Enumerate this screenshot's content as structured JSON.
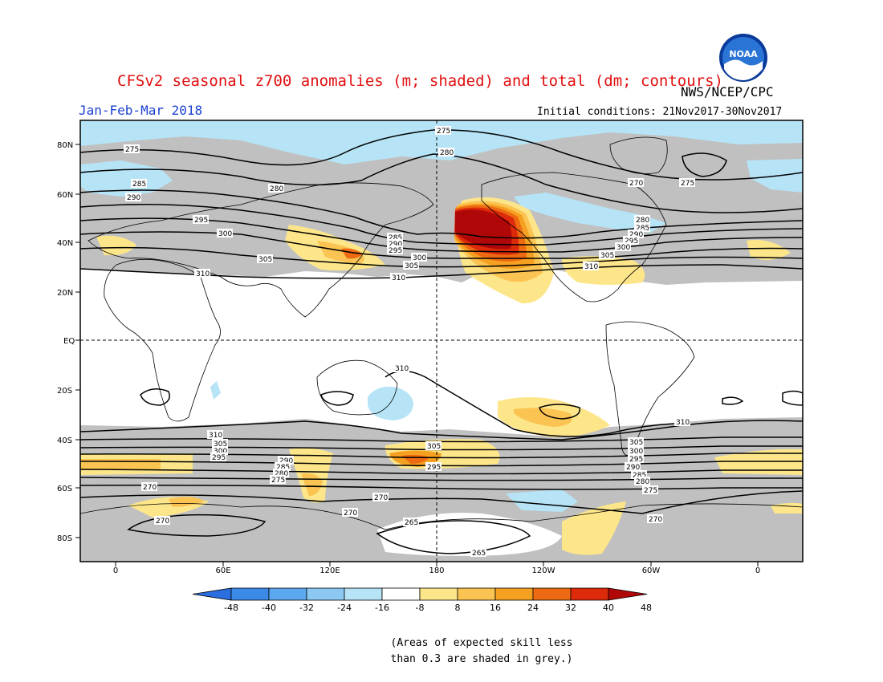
{
  "header": {
    "title": "CFSv2 seasonal z700 anomalies (m; shaded) and total (dm; contours)",
    "agency": "NWS/NCEP/CPC",
    "period": "Jan-Feb-Mar 2018",
    "initial_conditions": "Initial conditions: 21Nov2017-30Nov2017"
  },
  "logo": {
    "text": "NOAA",
    "icon": "noaa-logo"
  },
  "axes": {
    "lat_labels": [
      "80N",
      "60N",
      "40N",
      "20N",
      "EQ",
      "20S",
      "40S",
      "60S",
      "80S"
    ],
    "lon_labels": [
      "0",
      "60E",
      "120E",
      "180",
      "120W",
      "60W",
      "0"
    ]
  },
  "contour_labels": [
    "275",
    "280",
    "285",
    "290",
    "295",
    "300",
    "305",
    "310",
    "270",
    "265"
  ],
  "colorbar": {
    "labels": [
      "-48",
      "-40",
      "-32",
      "-24",
      "-16",
      "-8",
      "8",
      "16",
      "24",
      "32",
      "40",
      "48"
    ],
    "colors": [
      "#2a6ee0",
      "#3c8ae8",
      "#5ca8ee",
      "#8cc8f2",
      "#b6e4f6",
      "#ffffff",
      "#fde68a",
      "#fbc452",
      "#f5a021",
      "#ee6a12",
      "#dd2a0a",
      "#b00808"
    ]
  },
  "colors": {
    "skill_mask_grey": "#c0c0c0",
    "title_red": "#e01010",
    "period_blue": "#1a3fd0"
  },
  "note": {
    "line1": "(Areas of expected skill less",
    "line2": "than 0.3 are shaded in grey.)"
  }
}
